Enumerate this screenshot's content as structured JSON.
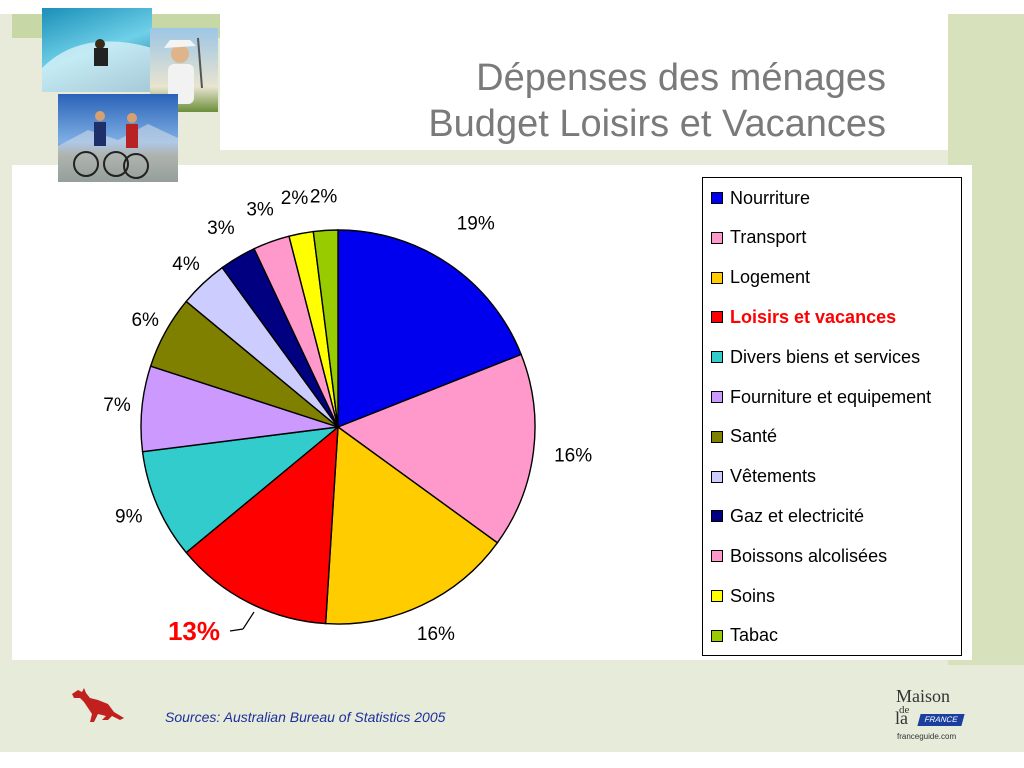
{
  "slide": {
    "title_line_1": "Dépenses des ménages",
    "title_line_2": "Budget Loisirs et Vacances",
    "sources": "Sources: Australian Bureau of Statistics 2005",
    "logo": {
      "line1": "Maison",
      "line2": "de",
      "line3": "la",
      "badge": "FRANCE",
      "url": "franceguide.com"
    }
  },
  "chart_data": {
    "type": "pie",
    "title": "",
    "categories": [
      "Nourriture",
      "Transport",
      "Logement",
      "Loisirs et vacances",
      "Divers biens et services",
      "Fourniture et equipement",
      "Santé",
      "Vêtements",
      "Gaz et electricité",
      "Boissons alcolisées",
      "Soins",
      "Tabac"
    ],
    "values": [
      19,
      16,
      16,
      13,
      9,
      7,
      6,
      4,
      3,
      3,
      2,
      2
    ],
    "labels": [
      "19%",
      "16%",
      "16%",
      "13%",
      "9%",
      "7%",
      "6%",
      "4%",
      "3%",
      "3%",
      "2%",
      "2%"
    ],
    "colors": [
      "#0000ee",
      "#ff99cc",
      "#ffcc00",
      "#ff0000",
      "#33cccc",
      "#cc99ff",
      "#808000",
      "#ccccff",
      "#000080",
      "#ff99cc",
      "#ffff00",
      "#99cc00"
    ],
    "highlight_index": 3,
    "start_angle_deg": 0,
    "direction": "clockwise",
    "legend_position": "right"
  }
}
